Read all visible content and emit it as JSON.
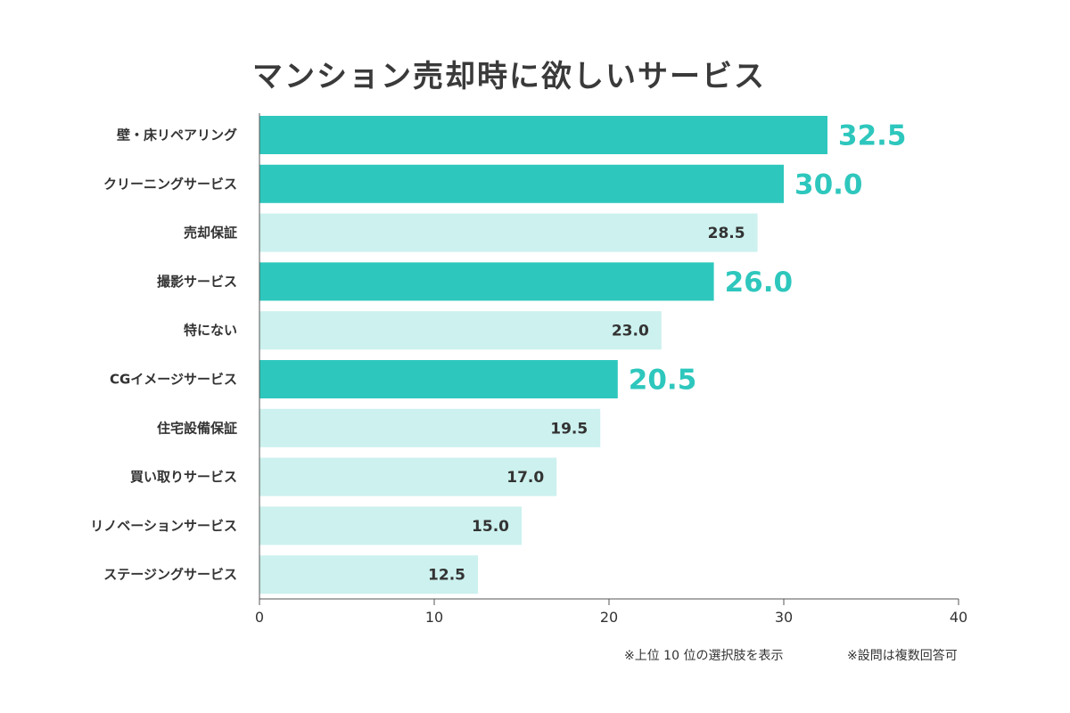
{
  "chart_data": {
    "type": "bar",
    "orientation": "horizontal",
    "title": "マンション売却時に欲しいサービス",
    "categories": [
      "壁・床リペアリング",
      "クリーニングサービス",
      "売却保証",
      "撮影サービス",
      "特にない",
      "CGイメージサービス",
      "住宅設備保証",
      "買い取りサービス",
      "リノベーションサービス",
      "ステージングサービス"
    ],
    "values": [
      32.5,
      30.0,
      28.5,
      26.0,
      23.0,
      20.5,
      19.5,
      17.0,
      15.0,
      12.5
    ],
    "value_labels": [
      "32.5",
      "30.0",
      "28.5",
      "26.0",
      "23.0",
      "20.5",
      "19.5",
      "17.0",
      "15.0",
      "12.5"
    ],
    "highlighted": [
      true,
      true,
      false,
      true,
      false,
      true,
      false,
      false,
      false,
      false
    ],
    "xlim": [
      0,
      40
    ],
    "xticks": [
      0,
      10,
      20,
      30,
      40
    ],
    "xlabel": "",
    "ylabel": "",
    "grid": false,
    "colors": {
      "highlight": "#2ec7bd",
      "normal": "#ccf1ee",
      "axis": "#555555",
      "label": "#333333",
      "highlight_label": "#2ec7bd"
    }
  },
  "footnotes": {
    "note1": "※上位 10 位の選択肢を表示",
    "note2": "※設問は複数回答可"
  }
}
